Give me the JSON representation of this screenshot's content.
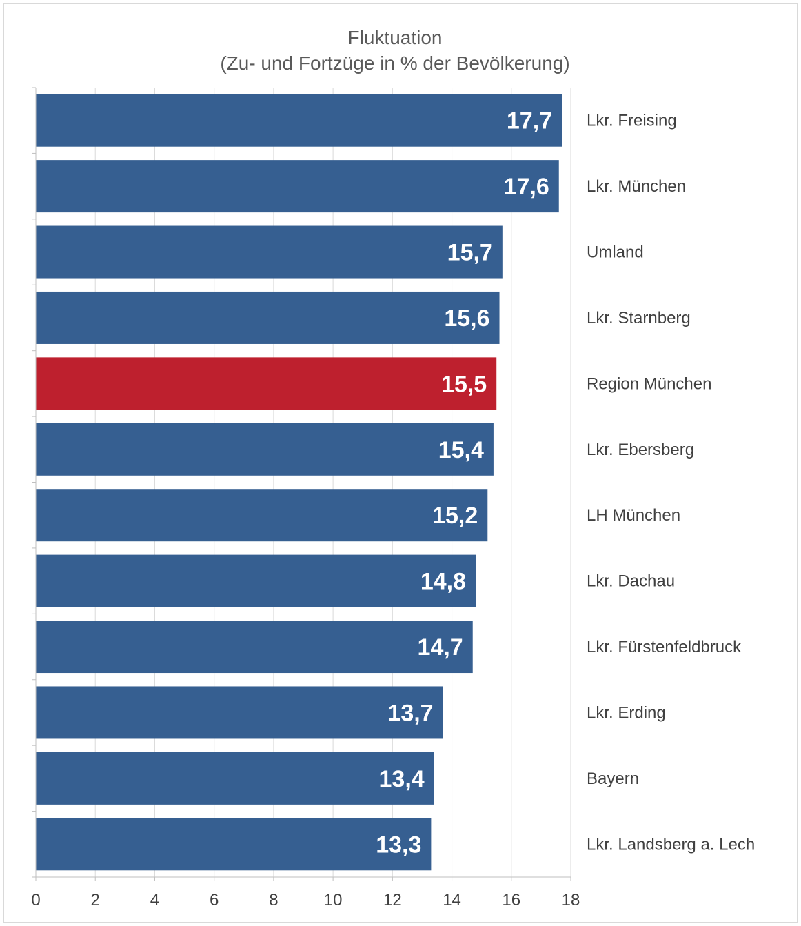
{
  "chart_data": {
    "type": "bar",
    "orientation": "horizontal",
    "title": "Fluktuation",
    "subtitle": "(Zu- und Fortzüge in % der Bevölkerung)",
    "categories": [
      "Lkr. Freising",
      "Lkr. München",
      "Umland",
      "Lkr. Starnberg",
      "Region München",
      "Lkr. Ebersberg",
      "LH München",
      "Lkr. Dachau",
      "Lkr. Fürstenfeldbruck",
      "Lkr. Erding",
      "Bayern",
      "Lkr. Landsberg a. Lech"
    ],
    "values": [
      17.7,
      17.6,
      15.7,
      15.6,
      15.5,
      15.4,
      15.2,
      14.8,
      14.7,
      13.7,
      13.4,
      13.3
    ],
    "value_labels": [
      "17,7",
      "17,6",
      "15,7",
      "15,6",
      "15,5",
      "15,4",
      "15,2",
      "14,8",
      "14,7",
      "13,7",
      "13,4",
      "13,3"
    ],
    "xlim": [
      0,
      18
    ],
    "xticks": [
      "0",
      "2",
      "4",
      "6",
      "8",
      "10",
      "12",
      "14",
      "16",
      "18"
    ],
    "grid": true,
    "legend": "none",
    "colors": {
      "default": "#365f91",
      "highlight": "#be202e",
      "highlight_category": "Region München"
    }
  }
}
